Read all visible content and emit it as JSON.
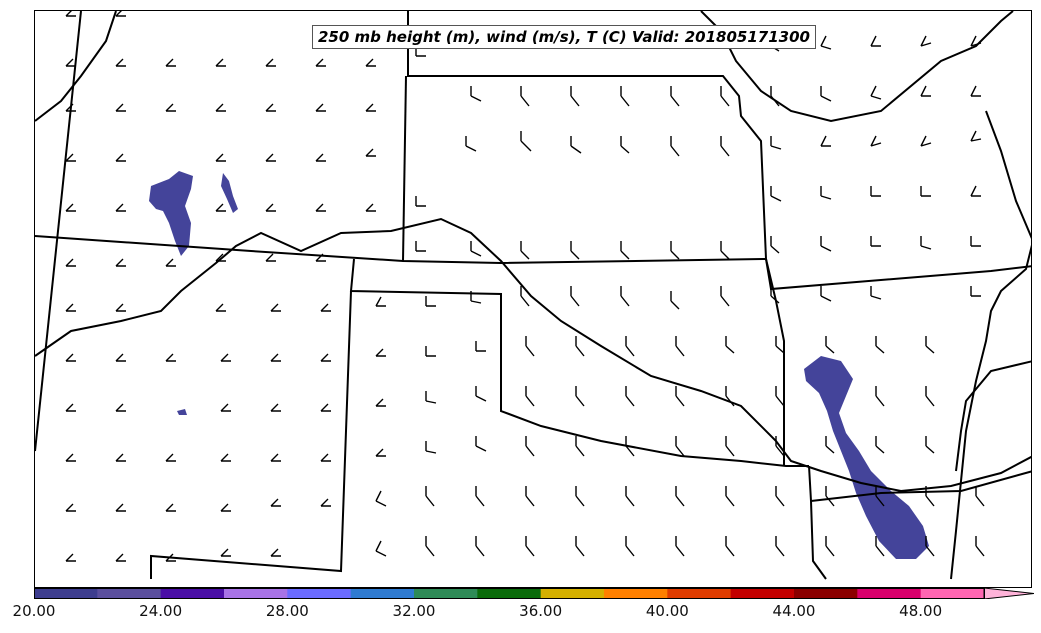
{
  "title": "250 mb height (m), wind (m/s), T (C) Valid: 201805171300",
  "colorbar": {
    "min": 20.0,
    "max": 50.0,
    "tick_labels": [
      "20.00",
      "24.00",
      "28.00",
      "32.00",
      "36.00",
      "40.00",
      "44.00",
      "48.00"
    ],
    "colors": [
      "#3d3d8f",
      "#5b4f9e",
      "#4a0ea6",
      "#a873e6",
      "#6b6bff",
      "#2f7bd1",
      "#2e8b57",
      "#0a6b0a",
      "#d4b000",
      "#ff8000",
      "#e03c00",
      "#c40000",
      "#8b0000",
      "#d9006c",
      "#ff66b2",
      "#ffb3d9"
    ]
  },
  "temperature_patches": [
    {
      "name": "southwest-colorado-cold-pool",
      "value": 21
    },
    {
      "name": "east-texas-louisiana-cold-pool",
      "value": 21
    }
  ]
}
